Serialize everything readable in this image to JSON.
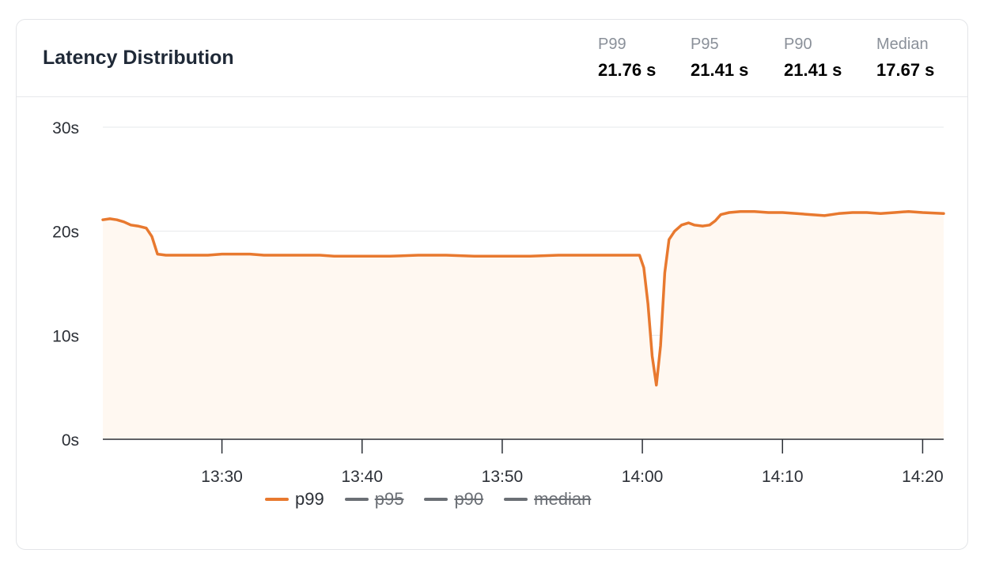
{
  "card": {
    "title": "Latency Distribution",
    "stats": [
      {
        "label": "P99",
        "value": "21.76 s"
      },
      {
        "label": "P95",
        "value": "21.41 s"
      },
      {
        "label": "P90",
        "value": "21.41 s"
      },
      {
        "label": "Median",
        "value": "17.67 s"
      }
    ]
  },
  "colors": {
    "p99": "#e8792f",
    "disabled": "#6b6f75",
    "fill": "#fff8f1",
    "grid": "#e6e8eb"
  },
  "chart_data": {
    "type": "area",
    "y_ticks": [
      "0s",
      "10s",
      "20s",
      "30s"
    ],
    "ylim": [
      0,
      30
    ],
    "x_ticks": [
      "13:30",
      "13:40",
      "13:50",
      "14:00",
      "14:10",
      "14:20"
    ],
    "x_unit": "minutes since 13:00",
    "xlim": [
      21.5,
      81.5
    ],
    "series": [
      {
        "name": "p99",
        "enabled": true,
        "points": [
          [
            21.5,
            21.1
          ],
          [
            22.0,
            21.2
          ],
          [
            22.5,
            21.1
          ],
          [
            23.0,
            20.9
          ],
          [
            23.5,
            20.6
          ],
          [
            24.0,
            20.5
          ],
          [
            24.6,
            20.3
          ],
          [
            25.0,
            19.5
          ],
          [
            25.4,
            17.8
          ],
          [
            26.0,
            17.7
          ],
          [
            27.0,
            17.7
          ],
          [
            28.0,
            17.7
          ],
          [
            29.0,
            17.7
          ],
          [
            30.0,
            17.8
          ],
          [
            31.0,
            17.8
          ],
          [
            32.0,
            17.8
          ],
          [
            33.0,
            17.7
          ],
          [
            34.0,
            17.7
          ],
          [
            35.0,
            17.7
          ],
          [
            36.0,
            17.7
          ],
          [
            37.0,
            17.7
          ],
          [
            38.0,
            17.6
          ],
          [
            40.0,
            17.6
          ],
          [
            42.0,
            17.6
          ],
          [
            44.0,
            17.7
          ],
          [
            46.0,
            17.7
          ],
          [
            48.0,
            17.6
          ],
          [
            50.0,
            17.6
          ],
          [
            52.0,
            17.6
          ],
          [
            54.0,
            17.7
          ],
          [
            56.0,
            17.7
          ],
          [
            58.0,
            17.7
          ],
          [
            59.8,
            17.7
          ],
          [
            60.1,
            16.5
          ],
          [
            60.4,
            13.0
          ],
          [
            60.7,
            8.0
          ],
          [
            61.0,
            5.2
          ],
          [
            61.3,
            9.0
          ],
          [
            61.6,
            16.0
          ],
          [
            61.9,
            19.2
          ],
          [
            62.3,
            20.0
          ],
          [
            62.8,
            20.6
          ],
          [
            63.3,
            20.8
          ],
          [
            63.7,
            20.6
          ],
          [
            64.3,
            20.5
          ],
          [
            64.8,
            20.6
          ],
          [
            65.2,
            21.0
          ],
          [
            65.6,
            21.6
          ],
          [
            66.2,
            21.8
          ],
          [
            67.0,
            21.9
          ],
          [
            68.0,
            21.9
          ],
          [
            69.0,
            21.8
          ],
          [
            70.0,
            21.8
          ],
          [
            71.0,
            21.7
          ],
          [
            72.0,
            21.6
          ],
          [
            73.0,
            21.5
          ],
          [
            74.0,
            21.7
          ],
          [
            75.0,
            21.8
          ],
          [
            76.0,
            21.8
          ],
          [
            77.0,
            21.7
          ],
          [
            78.0,
            21.8
          ],
          [
            79.0,
            21.9
          ],
          [
            80.0,
            21.8
          ],
          [
            81.5,
            21.7
          ]
        ]
      },
      {
        "name": "p95",
        "enabled": false
      },
      {
        "name": "p90",
        "enabled": false
      },
      {
        "name": "median",
        "enabled": false
      }
    ]
  }
}
